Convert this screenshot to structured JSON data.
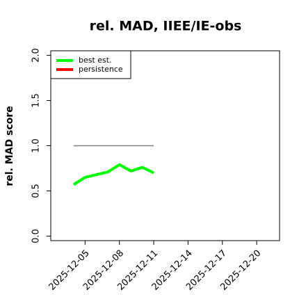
{
  "chart_data": {
    "type": "line",
    "title": "rel. MAD, IIEE/IE-obs",
    "ylabel": "rel. MAD score",
    "x": [
      "2025-12-04",
      "2025-12-05",
      "2025-12-06",
      "2025-12-07",
      "2025-12-08",
      "2025-12-09",
      "2025-12-10",
      "2025-12-11"
    ],
    "series": [
      {
        "name": "best est.",
        "color": "#00ff00",
        "values": [
          0.57,
          0.65,
          0.68,
          0.71,
          0.79,
          0.72,
          0.76,
          0.7
        ]
      },
      {
        "name": "persistence",
        "color": "#ff0000",
        "values": [
          null,
          null,
          null,
          null,
          null,
          null,
          null,
          null
        ]
      }
    ],
    "reference_line": {
      "value": 1.0,
      "color": "#808080"
    },
    "xlim": [
      "2025-12-02",
      "2025-12-22"
    ],
    "xticks": [
      "2025-12-05",
      "2025-12-08",
      "2025-12-11",
      "2025-12-14",
      "2025-12-17",
      "2025-12-20"
    ],
    "ylim": [
      -0.05,
      2.05
    ],
    "yticks": [
      {
        "value": 0,
        "label": "0.0"
      },
      {
        "value": 0.5,
        "label": "0.5"
      },
      {
        "value": 1,
        "label": "1.0"
      },
      {
        "value": 1.5,
        "label": "1.5"
      },
      {
        "value": 2,
        "label": "2.0"
      }
    ],
    "legend": "top-left",
    "grid": false
  }
}
